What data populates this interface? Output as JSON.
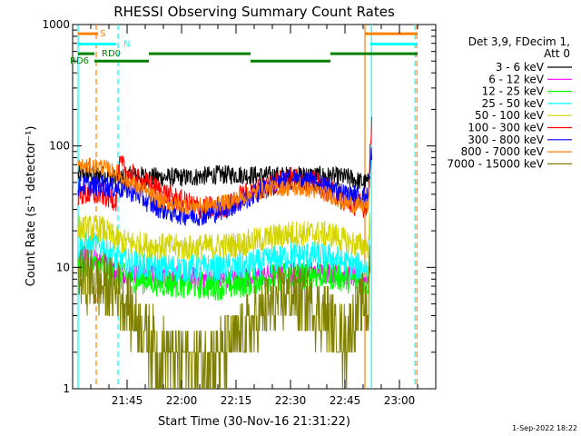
{
  "chart_data": {
    "type": "line",
    "title": "RHESSI Observing Summary Count Rates",
    "xlabel": "Start Time (30-Nov-16 21:31:22)",
    "ylabel": "Count Rate (s⁻¹ detector⁻¹)",
    "yscale": "log",
    "ylim": [
      1,
      1000
    ],
    "yticks": [
      {
        "value": 1,
        "label": "1"
      },
      {
        "value": 10,
        "label": "10"
      },
      {
        "value": 100,
        "label": "100"
      },
      {
        "value": 1000,
        "label": "1000"
      }
    ],
    "xlim_minutes_after_2130": [
      0,
      100
    ],
    "xticks": [
      {
        "minute": 15,
        "label": "21:45"
      },
      {
        "minute": 30,
        "label": "22:00"
      },
      {
        "minute": 45,
        "label": "22:15"
      },
      {
        "minute": 60,
        "label": "22:30"
      },
      {
        "minute": 75,
        "label": "22:45"
      },
      {
        "minute": 90,
        "label": "23:00"
      }
    ],
    "legend_position": "right",
    "legend_header": [
      "Det 3,9, FDecim 1,",
      "Att 0"
    ],
    "series": [
      {
        "name": "3 - 6 keV",
        "color": "#000000",
        "x": [
          1.5,
          8,
          12,
          18,
          25,
          32,
          40,
          46,
          52,
          60,
          68,
          72,
          76,
          80,
          81.5,
          82
        ],
        "y": [
          58,
          58,
          54,
          57,
          55,
          55,
          58,
          58,
          57,
          57,
          57,
          56,
          55,
          50,
          50,
          70
        ]
      },
      {
        "name": "6 - 12 keV",
        "color": "#ff00ff",
        "x": [
          1.5,
          8,
          12,
          15,
          18,
          24,
          32,
          40,
          46,
          52,
          60,
          68,
          72,
          76,
          80,
          81.5,
          82
        ],
        "y": [
          12,
          12,
          9,
          9,
          9,
          8.5,
          8.3,
          7.9,
          8,
          8.5,
          9,
          9.2,
          9,
          8.5,
          8,
          8,
          14
        ]
      },
      {
        "name": "12 - 25 keV",
        "color": "#00ff00",
        "x": [
          1.5,
          8,
          12,
          15,
          18,
          24,
          32,
          40,
          46,
          52,
          60,
          68,
          72,
          76,
          80,
          81.5,
          82
        ],
        "y": [
          10,
          10,
          8.5,
          8.2,
          8,
          7.5,
          7.2,
          7,
          7.2,
          8,
          8.5,
          8.8,
          8.5,
          8,
          7.5,
          7.5,
          15
        ]
      },
      {
        "name": "25 - 50 keV",
        "color": "#00ffff",
        "x": [
          1.5,
          8,
          12,
          15,
          18,
          24,
          32,
          40,
          46,
          52,
          60,
          68,
          72,
          76,
          80,
          81.5,
          82
        ],
        "y": [
          15,
          15,
          12,
          11,
          10.5,
          10,
          9.8,
          10,
          10,
          11,
          12.5,
          12.5,
          12,
          10.5,
          10,
          10,
          22
        ]
      },
      {
        "name": "50 - 100 keV",
        "color": "#d4d400",
        "x": [
          1.5,
          8,
          12,
          15,
          18,
          24,
          32,
          40,
          46,
          52,
          60,
          68,
          72,
          76,
          80,
          81.5,
          82
        ],
        "y": [
          21,
          21,
          17,
          16,
          15.5,
          15,
          14.5,
          15,
          15.5,
          17,
          19,
          19,
          18.5,
          16,
          15,
          15,
          32
        ]
      },
      {
        "name": "100 - 300 keV",
        "color": "#ff0000",
        "x": [
          1.5,
          8,
          12,
          13,
          15,
          18,
          21,
          24,
          28,
          32,
          36,
          40,
          45,
          46,
          50,
          55,
          60,
          65,
          70,
          72,
          75,
          80,
          81.5,
          82,
          82.5
        ],
        "y": [
          40,
          40,
          36,
          70,
          62,
          52,
          48,
          43,
          37,
          33,
          31,
          31,
          34,
          38,
          42,
          50,
          54,
          52,
          44,
          41,
          35,
          32,
          35,
          120,
          165
        ]
      },
      {
        "name": "300 - 800 keV",
        "color": "#0000ff",
        "x": [
          1.5,
          8,
          12,
          15,
          18,
          21,
          24,
          28,
          32,
          36,
          40,
          45,
          50,
          55,
          60,
          65,
          70,
          72,
          75,
          80,
          81.5,
          82,
          82.5
        ],
        "y": [
          47,
          47,
          45,
          44,
          40,
          34,
          31,
          28,
          27,
          27,
          29,
          33,
          40,
          47,
          53,
          52,
          46,
          44,
          40,
          38,
          38,
          70,
          100
        ]
      },
      {
        "name": "800 - 7000 keV",
        "color": "#ff8000",
        "x": [
          1.5,
          8,
          12,
          15,
          18,
          21,
          24,
          28,
          32,
          36,
          40,
          45,
          50,
          55,
          60,
          65,
          70,
          72,
          75,
          80,
          81.5,
          82
        ],
        "y": [
          68,
          68,
          60,
          52,
          45,
          40,
          36,
          33,
          32,
          32,
          33,
          36,
          41,
          45,
          45,
          44,
          40,
          38,
          34,
          32,
          32,
          60
        ]
      },
      {
        "name": "7000 - 15000 keV",
        "color": "#808000",
        "x": [
          1.5,
          4,
          8,
          12,
          15,
          18,
          22,
          24,
          30,
          36,
          40,
          45,
          50,
          55,
          60,
          65,
          70,
          72,
          75,
          80,
          81.5,
          82
        ],
        "y": [
          8,
          8,
          7,
          6.5,
          5,
          3.5,
          2.5,
          2,
          1.8,
          1.8,
          2,
          2.5,
          3.5,
          5,
          6,
          5,
          4,
          3,
          2.5,
          5,
          5,
          12
        ]
      }
    ],
    "state_bars": [
      {
        "label": "S",
        "color": "#ff8000",
        "segments": [
          [
            1.5,
            7
          ],
          [
            80.5,
            95
          ]
        ],
        "log_y": 840
      },
      {
        "label": "N",
        "color": "#00ffff",
        "segments": [
          [
            1.5,
            12
          ],
          [
            82,
            95
          ]
        ],
        "log_y": 690
      },
      {
        "label": "RD0",
        "color": "#008000",
        "segments": [
          [
            1.5,
            6
          ],
          [
            21,
            49
          ],
          [
            71,
            95
          ]
        ],
        "log_y": 575
      },
      {
        "label": "RD6",
        "color": "#008000",
        "segments": [
          [
            6,
            21
          ],
          [
            49,
            71
          ]
        ],
        "log_y": 500
      }
    ],
    "vlines": [
      {
        "minute": 1.5,
        "color": "#00ffff",
        "style": "solid"
      },
      {
        "minute": 6.5,
        "color": "#ff8000",
        "style": "dashed"
      },
      {
        "minute": 12.5,
        "color": "#00ffff",
        "style": "dashed"
      },
      {
        "minute": 80.5,
        "color": "#ff8000",
        "style": "solid"
      },
      {
        "minute": 82.3,
        "color": "#00ffff",
        "style": "solid"
      },
      {
        "minute": 94.3,
        "color": "#00ffff",
        "style": "dashed"
      },
      {
        "minute": 94.8,
        "color": "#ff8000",
        "style": "dashed"
      }
    ]
  },
  "footer": {
    "timestamp": "1-Sep-2022 18:22"
  }
}
